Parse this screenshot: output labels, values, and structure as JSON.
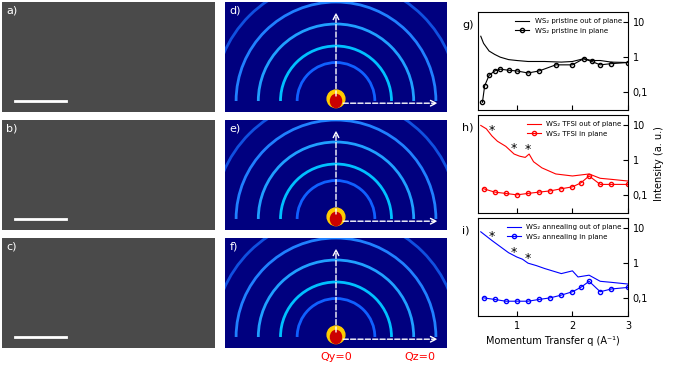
{
  "panels": {
    "images": [
      {
        "label": "a)"
      },
      {
        "label": "b)"
      },
      {
        "label": "c)"
      }
    ],
    "patterns": [
      {
        "label": "d)"
      },
      {
        "label": "e)"
      },
      {
        "label": "f)"
      }
    ],
    "pattern_axis_labels": [
      "Qy=0",
      "Qz=0"
    ]
  },
  "chart_data": [
    {
      "type": "line",
      "title": "g)",
      "log": "y",
      "legend": "upper right",
      "tick_labels": "y",
      "xlim": [
        0.3,
        3
      ],
      "xticks": [
        1,
        2,
        3
      ],
      "ylim": [
        0.03,
        20
      ],
      "yticks": [
        {
          "value": 0.1,
          "label": "0,1"
        },
        1,
        10
      ],
      "series": [
        {
          "name": "WS₂ pristine out of plane",
          "color": "#000000",
          "marker": "none",
          "line_style": "solid",
          "x": [
            0.35,
            0.4,
            0.5,
            0.6,
            0.7,
            0.85,
            1.0,
            1.2,
            1.5,
            1.8,
            2.0,
            2.2,
            2.35,
            2.5,
            2.7,
            3.0
          ],
          "values": [
            4.0,
            2.5,
            1.5,
            1.2,
            1.0,
            0.85,
            0.8,
            0.75,
            0.75,
            0.72,
            0.75,
            0.9,
            0.8,
            0.8,
            0.72,
            0.7
          ]
        },
        {
          "name": "WS₂ pristine in plane",
          "color": "#000000",
          "marker": "circle",
          "line_style": "solid",
          "x": [
            0.38,
            0.42,
            0.5,
            0.6,
            0.7,
            0.85,
            1.0,
            1.2,
            1.4,
            1.7,
            2.0,
            2.2,
            2.35,
            2.5,
            2.7,
            3.0
          ],
          "values": [
            0.05,
            0.15,
            0.3,
            0.4,
            0.45,
            0.42,
            0.4,
            0.35,
            0.4,
            0.6,
            0.6,
            0.9,
            0.75,
            0.6,
            0.65,
            0.7
          ]
        }
      ]
    },
    {
      "type": "line",
      "title": "h)",
      "log": "y",
      "legend": "upper right",
      "tick_labels": "y",
      "ylabel": "Intensity (a. u.)",
      "xlim": [
        0.3,
        3
      ],
      "xticks": [
        1,
        2,
        3
      ],
      "ylim": [
        0.03,
        20
      ],
      "yticks": [
        {
          "value": 0.1,
          "label": "0,1"
        },
        1,
        10
      ],
      "annotations": [
        {
          "text": "*",
          "x": 0.55,
          "y": 7
        },
        {
          "text": "*",
          "x": 0.95,
          "y": 2.2
        },
        {
          "text": "*",
          "x": 1.2,
          "y": 2.0
        }
      ],
      "series": [
        {
          "name": "WS₂ TFSI out of plane",
          "color": "#ff0000",
          "marker": "none",
          "line_style": "solid",
          "x": [
            0.35,
            0.45,
            0.55,
            0.65,
            0.8,
            0.95,
            1.05,
            1.15,
            1.22,
            1.3,
            1.45,
            1.7,
            2.0,
            2.3,
            2.5,
            2.7,
            3.0
          ],
          "values": [
            10,
            8,
            5,
            3.5,
            2.5,
            1.5,
            1.3,
            1.2,
            1.5,
            0.9,
            0.6,
            0.4,
            0.35,
            0.4,
            0.3,
            0.28,
            0.25
          ]
        },
        {
          "name": "WS₂ TFSI in plane",
          "color": "#ff0000",
          "marker": "circle",
          "line_style": "solid",
          "x": [
            0.4,
            0.6,
            0.8,
            1.0,
            1.2,
            1.4,
            1.6,
            1.8,
            2.0,
            2.15,
            2.3,
            2.5,
            2.7,
            3.0
          ],
          "values": [
            0.15,
            0.12,
            0.11,
            0.1,
            0.11,
            0.12,
            0.13,
            0.15,
            0.17,
            0.22,
            0.35,
            0.2,
            0.2,
            0.2
          ]
        }
      ]
    },
    {
      "type": "line",
      "title": "i)",
      "log": "y",
      "legend": "upper right",
      "xlabel": "Momentum Transfer q (A⁻¹)",
      "xlim": [
        0.3,
        3
      ],
      "xticks": [
        1,
        2,
        3
      ],
      "ylim": [
        0.03,
        20
      ],
      "yticks": [
        {
          "value": 0.1,
          "label": "0,1"
        },
        1,
        10
      ],
      "annotations": [
        {
          "text": "*",
          "x": 0.55,
          "y": 6
        },
        {
          "text": "*",
          "x": 0.95,
          "y": 2.0
        },
        {
          "text": "*",
          "x": 1.2,
          "y": 1.4
        }
      ],
      "series": [
        {
          "name": "WS₂ annealing out of plane",
          "color": "#0000ff",
          "marker": "none",
          "line_style": "solid",
          "x": [
            0.35,
            0.45,
            0.55,
            0.7,
            0.85,
            1.0,
            1.1,
            1.2,
            1.35,
            1.5,
            1.8,
            2.0,
            2.1,
            2.3,
            2.5,
            2.7,
            3.0
          ],
          "values": [
            8,
            6,
            4.5,
            3,
            2,
            1.5,
            1.3,
            1.0,
            0.85,
            0.7,
            0.5,
            0.6,
            0.4,
            0.45,
            0.3,
            0.28,
            0.25
          ]
        },
        {
          "name": "WS₂ annealing in plane",
          "color": "#0000ff",
          "marker": "circle",
          "line_style": "solid",
          "x": [
            0.4,
            0.6,
            0.8,
            1.0,
            1.2,
            1.4,
            1.6,
            1.8,
            2.0,
            2.15,
            2.3,
            2.5,
            2.7,
            3.0
          ],
          "values": [
            0.1,
            0.09,
            0.08,
            0.08,
            0.08,
            0.09,
            0.1,
            0.12,
            0.15,
            0.2,
            0.3,
            0.15,
            0.18,
            0.2
          ]
        }
      ]
    }
  ]
}
